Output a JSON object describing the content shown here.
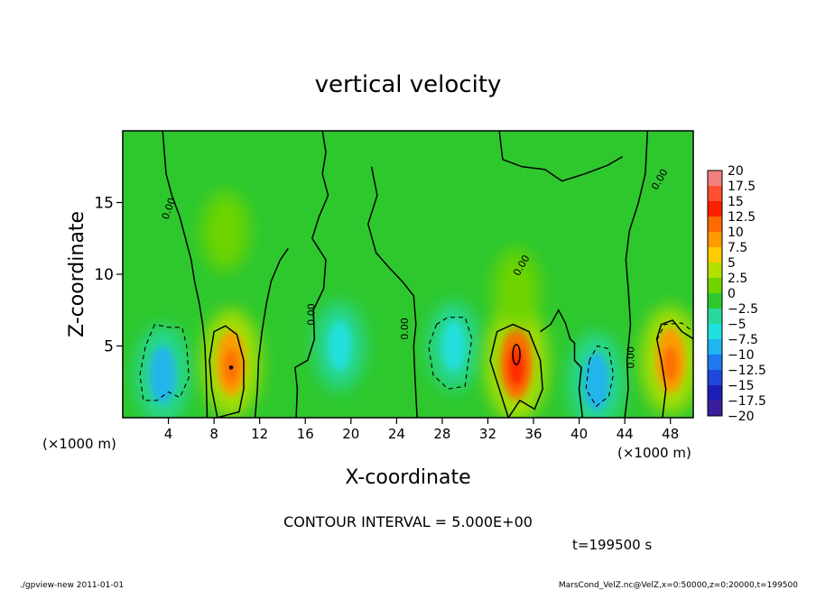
{
  "chart_data": {
    "type": "heatmap",
    "title": "vertical velocity",
    "xlabel": "X-coordinate",
    "ylabel": "Z-coordinate",
    "x_unit": "(×1000 m)",
    "x_unit_right": "(×1000 m)",
    "xlim": [
      0,
      50
    ],
    "ylim": [
      0,
      20
    ],
    "xticks": [
      4,
      8,
      12,
      16,
      20,
      24,
      28,
      32,
      36,
      40,
      44,
      48
    ],
    "yticks": [
      5,
      10,
      15
    ],
    "contour_interval_text": "CONTOUR INTERVAL = 5.000E+00",
    "time_text": "t=199500 s",
    "contour_label": "0.00",
    "colorbar": {
      "levels": [
        20,
        17.5,
        15,
        12.5,
        10,
        7.5,
        5,
        2.5,
        0,
        -2.5,
        -5,
        -7.5,
        -10,
        -12.5,
        -15,
        -17.5,
        -20
      ],
      "level_labels": [
        "20",
        "17.5",
        "15",
        "12.5",
        "10",
        "7.5",
        "5",
        "2.5",
        "0",
        "−2.5",
        "−5",
        "−7.5",
        "−10",
        "−12.5",
        "−15",
        "−17.5",
        "−20"
      ],
      "colors": [
        "#f08080",
        "#ff5030",
        "#ff2000",
        "#ff6a00",
        "#ff9a00",
        "#ffcc00",
        "#b4e000",
        "#70d400",
        "#2ec82e",
        "#28d89c",
        "#20e0e0",
        "#20b4f0",
        "#1e78f0",
        "#1e48dc",
        "#1e1eb4",
        "#3c1e9c",
        "#7814a0"
      ]
    },
    "background_value": 0,
    "features": [
      {
        "x": 3.5,
        "z": 3.0,
        "value": -7.5
      },
      {
        "x": 9.5,
        "z": 3.8,
        "value": 10
      },
      {
        "x": 19.0,
        "z": 5.0,
        "value": -5
      },
      {
        "x": 29.0,
        "z": 5.0,
        "value": -5
      },
      {
        "x": 34.5,
        "z": 3.8,
        "value": 12.5
      },
      {
        "x": 41.5,
        "z": 2.5,
        "value": -7.5
      },
      {
        "x": 48.0,
        "z": 4.0,
        "value": 10
      },
      {
        "x": 9.0,
        "z": 13.0,
        "value": 3
      },
      {
        "x": 34.5,
        "z": 9.0,
        "value": 3
      }
    ]
  },
  "footer": {
    "left": "./gpview-new   2011-01-01",
    "right": "MarsCond_VelZ.nc@VelZ,x=0:50000,z=0:20000,t=199500"
  }
}
